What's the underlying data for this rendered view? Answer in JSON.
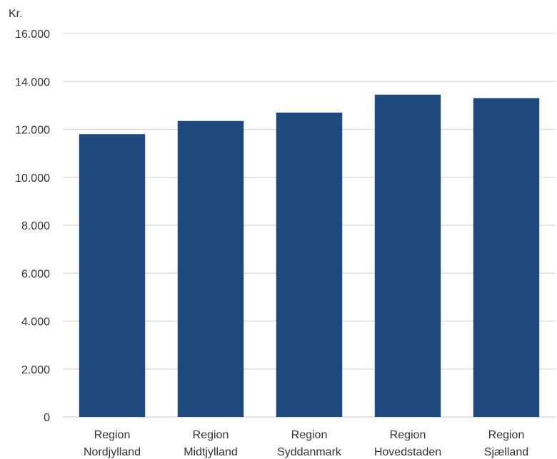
{
  "chart_data": {
    "type": "bar",
    "title": "",
    "xlabel": "",
    "ylabel": "Kr.",
    "ylim": [
      0,
      16000
    ],
    "yticks": [
      0,
      2000,
      4000,
      6000,
      8000,
      10000,
      12000,
      14000,
      16000
    ],
    "ytick_labels": [
      "0",
      "2.000",
      "4.000",
      "6.000",
      "8.000",
      "10.000",
      "12.000",
      "14.000",
      "16.000"
    ],
    "categories": [
      [
        "Region",
        "Nordjylland"
      ],
      [
        "Region",
        "Midtjylland"
      ],
      [
        "Region",
        "Syddanmark"
      ],
      [
        "Region",
        "Hovedstaden"
      ],
      [
        "Region",
        "Sjælland"
      ]
    ],
    "values": [
      11800,
      12350,
      12700,
      13450,
      13300
    ],
    "grid": true,
    "legend": "none",
    "bar_color": "#1f497d",
    "grid_color": "#d9d9d9"
  }
}
